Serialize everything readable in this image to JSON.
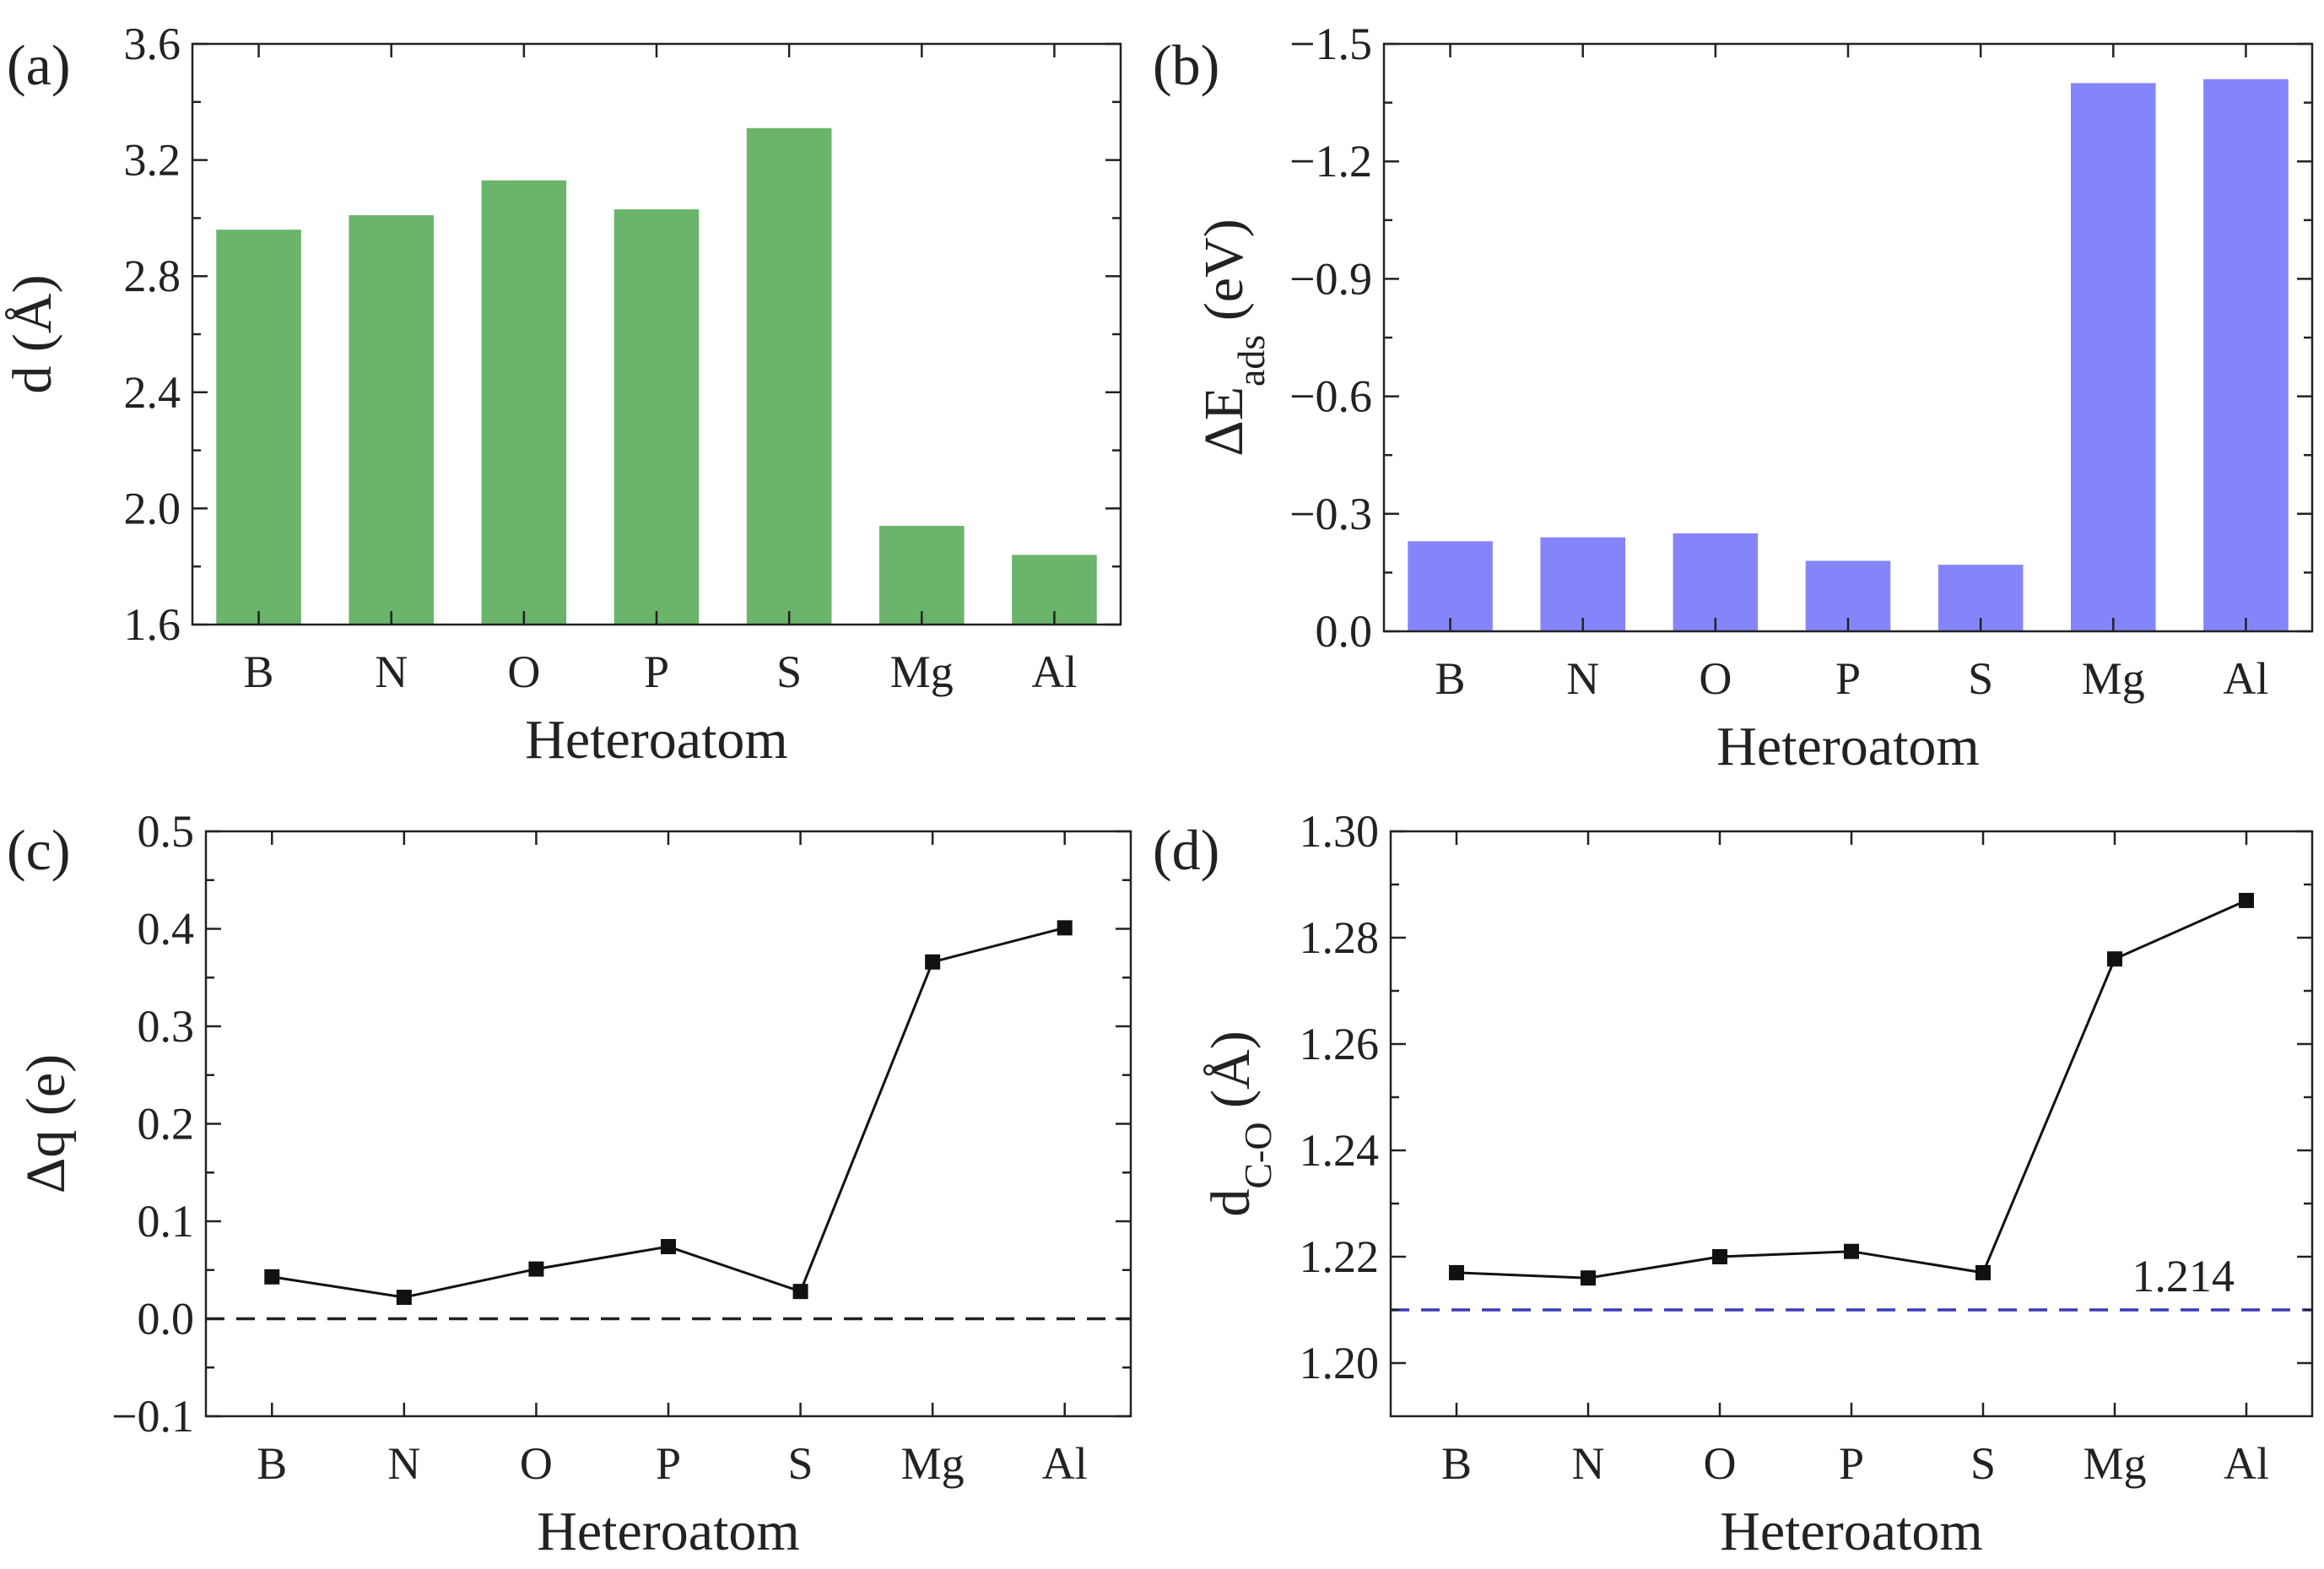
{
  "chart_data": [
    {
      "panel": "(a)",
      "type": "bar",
      "categories": [
        "B",
        "N",
        "O",
        "P",
        "S",
        "Mg",
        "Al"
      ],
      "values": [
        2.96,
        3.01,
        3.13,
        3.03,
        3.31,
        1.94,
        1.84
      ],
      "ylim": [
        1.6,
        3.6
      ],
      "yticks": [
        1.6,
        2.0,
        2.4,
        2.8,
        3.2,
        3.6
      ],
      "ytick_labels": [
        "1.6",
        "2.0",
        "2.4",
        "2.8",
        "3.2",
        "3.6"
      ],
      "xlabel": "Heteroatom",
      "ylabel": "d (Å)",
      "y_inverted": false,
      "bar_color": "#6ab46b"
    },
    {
      "panel": "(b)",
      "type": "bar",
      "categories": [
        "B",
        "N",
        "O",
        "P",
        "S",
        "Mg",
        "Al"
      ],
      "values": [
        -0.23,
        -0.24,
        -0.25,
        -0.18,
        -0.17,
        -1.4,
        -1.41
      ],
      "ylim": [
        0.0,
        -1.5
      ],
      "yticks": [
        0.0,
        -0.3,
        -0.6,
        -0.9,
        -1.2,
        -1.5
      ],
      "ytick_labels": [
        "0.0",
        "−0.3",
        "−0.6",
        "−0.9",
        "−1.2",
        "−1.5"
      ],
      "xlabel": "Heteroatom",
      "ylabel_main": "ΔE",
      "ylabel_sub": "ads",
      "ylabel_unit": " (eV)",
      "y_inverted": true,
      "bar_color": "#8585fb"
    },
    {
      "panel": "(c)",
      "type": "line",
      "categories": [
        "B",
        "N",
        "O",
        "P",
        "S",
        "Mg",
        "Al"
      ],
      "values": [
        0.043,
        0.022,
        0.051,
        0.074,
        0.028,
        0.366,
        0.401
      ],
      "ylim": [
        -0.1,
        0.5
      ],
      "yticks": [
        -0.1,
        0.0,
        0.1,
        0.2,
        0.3,
        0.4,
        0.5
      ],
      "ytick_labels": [
        "−0.1",
        "0.0",
        "0.1",
        "0.2",
        "0.3",
        "0.4",
        "0.5"
      ],
      "xlabel": "Heteroatom",
      "ylabel": "Δq (e)",
      "reference_line": {
        "value": 0.0,
        "color": "#222222"
      }
    },
    {
      "panel": "(d)",
      "type": "line",
      "categories": [
        "B",
        "N",
        "O",
        "P",
        "S",
        "Mg",
        "Al"
      ],
      "values": [
        1.217,
        1.216,
        1.22,
        1.221,
        1.217,
        1.276,
        1.287
      ],
      "ylim": [
        1.19,
        1.3
      ],
      "yticks": [
        1.2,
        1.22,
        1.24,
        1.26,
        1.28,
        1.3
      ],
      "ytick_labels": [
        "1.20",
        "1.22",
        "1.24",
        "1.26",
        "1.28",
        "1.30"
      ],
      "xlabel": "Heteroatom",
      "ylabel_main": "d",
      "ylabel_sub": "C-O",
      "ylabel_unit": " (Å)",
      "reference_line": {
        "value": 1.21,
        "color": "#3a3ab8",
        "label": "1.214"
      }
    }
  ]
}
